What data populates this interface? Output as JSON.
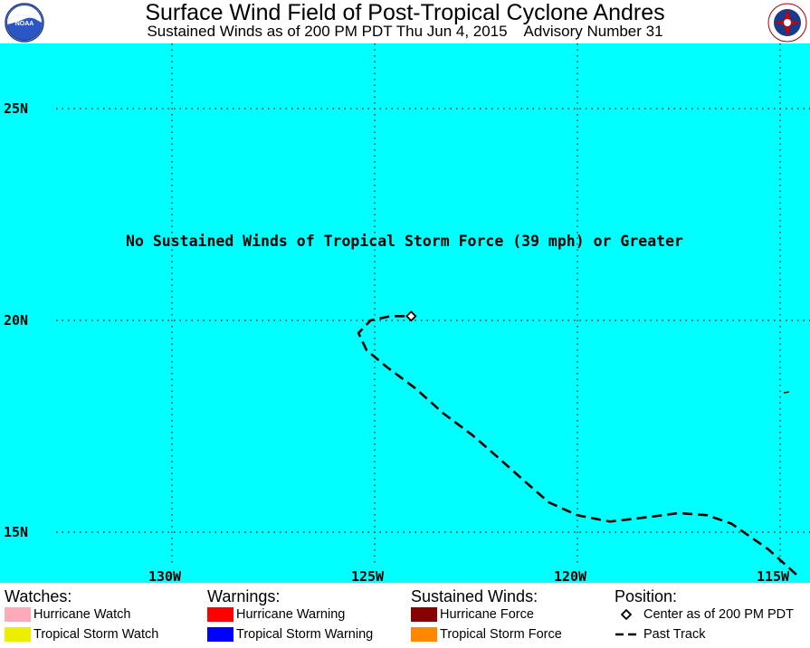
{
  "header": {
    "title": "Surface Wind Field of Post-Tropical Cyclone Andres",
    "subtitle": "Sustained Winds as of 200 PM PDT Thu Jun 4, 2015    Advisory Number 31",
    "left_logo": "noaa-logo-icon",
    "right_logo": "nws-logo-icon"
  },
  "map": {
    "background_color": "#00ffff",
    "message": "No Sustained Winds of Tropical Storm Force (39 mph) or Greater",
    "lat_labels": [
      {
        "label": "25N",
        "value": 25
      },
      {
        "label": "20N",
        "value": 20
      },
      {
        "label": "15N",
        "value": 15
      }
    ],
    "lon_labels": [
      {
        "label": "130W",
        "value": -130
      },
      {
        "label": "125W",
        "value": -125
      },
      {
        "label": "120W",
        "value": -120
      },
      {
        "label": "115W",
        "value": -115
      }
    ],
    "center": {
      "lon": -124.1,
      "lat": 20.1
    },
    "past_track": [
      [
        -114.6,
        14.0
      ],
      [
        -115.3,
        14.6
      ],
      [
        -116.2,
        15.2
      ],
      [
        -116.8,
        15.4
      ],
      [
        -117.5,
        15.45
      ],
      [
        -118.3,
        15.35
      ],
      [
        -119.2,
        15.25
      ],
      [
        -120.0,
        15.4
      ],
      [
        -120.7,
        15.7
      ],
      [
        -121.3,
        16.2
      ],
      [
        -122.0,
        16.8
      ],
      [
        -122.6,
        17.3
      ],
      [
        -123.3,
        17.8
      ],
      [
        -124.0,
        18.4
      ],
      [
        -124.7,
        18.9
      ],
      [
        -125.2,
        19.3
      ],
      [
        -125.4,
        19.7
      ],
      [
        -125.1,
        20.0
      ],
      [
        -124.6,
        20.1
      ],
      [
        -124.1,
        20.1
      ]
    ]
  },
  "legend": {
    "watches": {
      "heading": "Watches:",
      "items": [
        {
          "label": "Hurricane Watch",
          "color": "#ffaabb"
        },
        {
          "label": "Tropical Storm Watch",
          "color": "#eeee00"
        }
      ]
    },
    "warnings": {
      "heading": "Warnings:",
      "items": [
        {
          "label": "Hurricane Warning",
          "color": "#ff0000"
        },
        {
          "label": "Tropical Storm Warning",
          "color": "#0000ff"
        }
      ]
    },
    "winds": {
      "heading": "Sustained Winds:",
      "items": [
        {
          "label": "Hurricane Force",
          "color": "#880000"
        },
        {
          "label": "Tropical Storm Force",
          "color": "#ff8800"
        }
      ]
    },
    "position": {
      "heading": "Position:",
      "center_label": "Center as of 200 PM PDT",
      "track_label": "Past Track"
    }
  }
}
